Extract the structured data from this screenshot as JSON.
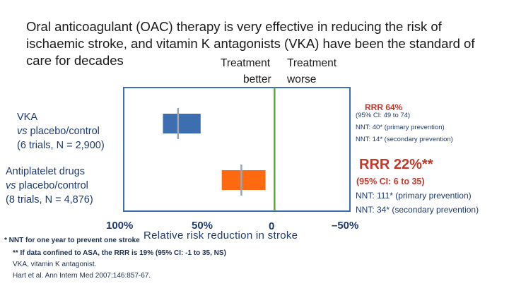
{
  "title": "Oral anticoagulant (OAC) therapy is very effective in reducing the risk of ischaemic stroke, and vitamin K antagonists (VKA) have been the standard of care for decades",
  "column_headers": {
    "treatment_top_left": "Treatment",
    "treatment_top_right": "Treatment",
    "better": "better",
    "worse": "worse"
  },
  "rows": {
    "vka": {
      "label_line1": "VKA",
      "label_line2_italic": "vs",
      "label_line2_rest": " placebo/control",
      "label_line3": "(6 trials, N = 2,900)",
      "rrr": "RRR  64%",
      "ci": "(95% CI: 49 to 74)",
      "nnt_primary": "NNT: 40* (primary prevention)",
      "nnt_secondary": "NNT: 14* (secondary prevention)"
    },
    "antiplatelet": {
      "label_line1": "Antiplatelet drugs",
      "label_line2_italic": "vs",
      "label_line2_rest": " placebo/control",
      "label_line3": "(8 trials, N = 4,876)",
      "rrr": "RRR  22%**",
      "ci": "(95%  CI: 6 to 35)",
      "nnt_primary": "NNT: 111* (primary prevention)",
      "nnt_secondary": "NNT: 34* (secondary prevention)"
    }
  },
  "axis": {
    "ticks": [
      "100%",
      "50%",
      "0",
      "–50%"
    ],
    "title": "Relative risk reduction in stroke"
  },
  "footnotes": [
    "* NNT for one year to prevent one stroke",
    "** If data confined to ASA, the RRR is 19% (95% CI: -1 to 35, NS)",
    "VKA, vitamin K antagonist.",
    "Hart et al. Ann Intern Med 2007;146:857-67."
  ],
  "colors": {
    "vka_bar": "#3d6fb0",
    "antiplatelet_bar": "#ff6a10",
    "zero_line": "#5aa83a",
    "frame": "#3d6fb0",
    "rrr_red": "#c0392b"
  },
  "chart_data": {
    "type": "forest",
    "title": "Relative risk reduction in stroke",
    "xlabel": "Relative risk reduction in stroke",
    "xlim": [
      100,
      -50
    ],
    "x_ticks": [
      100,
      50,
      0,
      -50
    ],
    "x_direction": "reversed",
    "reference_value": 0,
    "series": [
      {
        "name": "VKA vs placebo/control",
        "point": 64,
        "ci_low": 49,
        "ci_high": 74,
        "color": "#3d6fb0"
      },
      {
        "name": "Antiplatelet drugs vs placebo/control",
        "point": 22,
        "ci_low": 6,
        "ci_high": 35,
        "color": "#ff6a10"
      }
    ]
  }
}
